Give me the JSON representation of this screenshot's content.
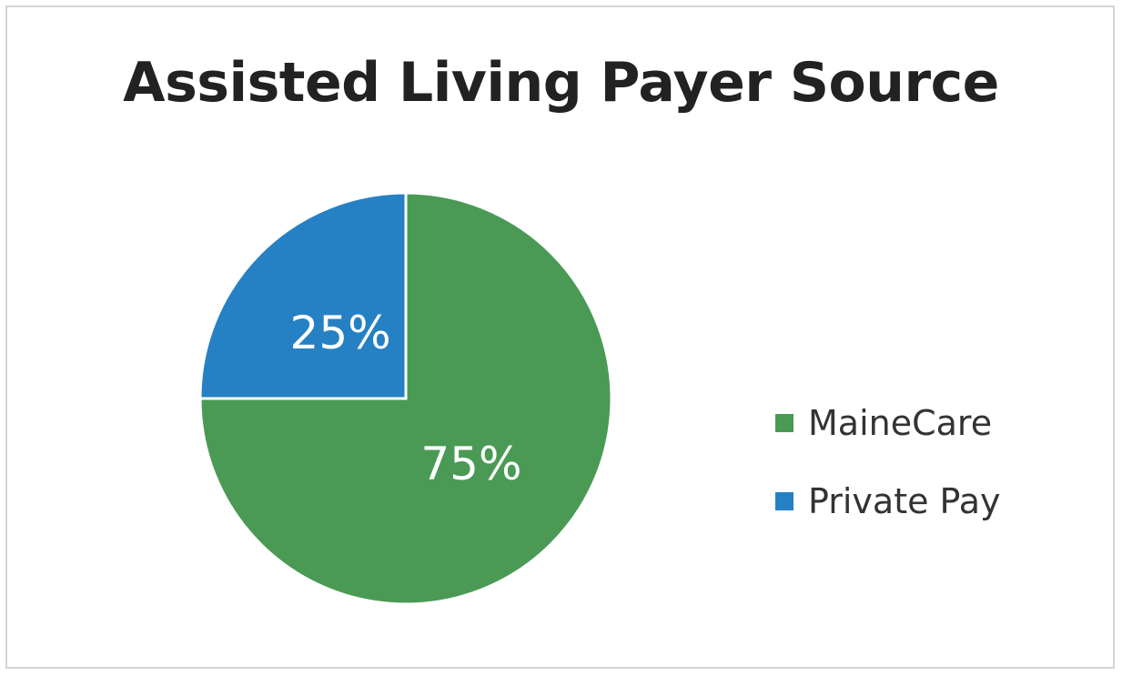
{
  "chart_data": {
    "type": "pie",
    "title": "Assisted Living Payer Source",
    "slices": [
      {
        "label": "MaineCare",
        "value": 75,
        "display": "75%",
        "color": "#4a9a55"
      },
      {
        "label": "Private Pay",
        "value": 25,
        "display": "25%",
        "color": "#2680c4"
      }
    ],
    "legend_position": "right"
  }
}
